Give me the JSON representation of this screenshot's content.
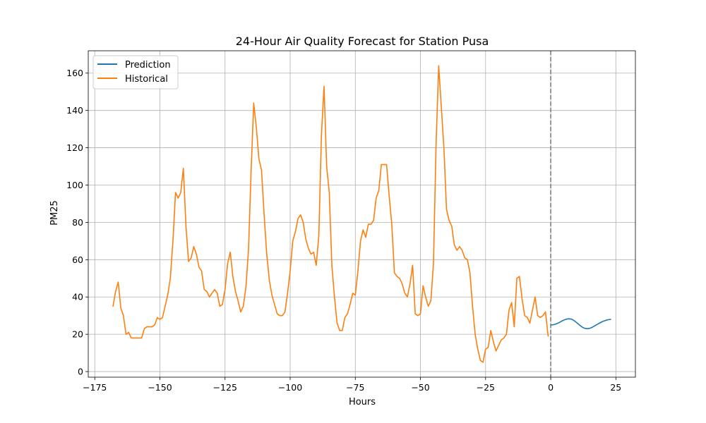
{
  "chart_data": {
    "type": "line",
    "title": "24-Hour Air Quality Forecast for Station Pusa",
    "xlabel": "Hours",
    "ylabel": "PM25",
    "xlim": [
      -177.5,
      32.5
    ],
    "ylim": [
      -3,
      172
    ],
    "x_ticks": [
      -175,
      -150,
      -125,
      -100,
      -75,
      -50,
      -25,
      0,
      25
    ],
    "y_ticks": [
      0,
      20,
      40,
      60,
      80,
      100,
      120,
      140,
      160
    ],
    "grid": true,
    "legend_position": "top-left",
    "vline": {
      "x": 0,
      "color": "#808080",
      "style": "dashed"
    },
    "series": [
      {
        "name": "Prediction",
        "color": "#1f77b4",
        "x": [
          0,
          1,
          2,
          3,
          4,
          5,
          6,
          7,
          8,
          9,
          10,
          11,
          12,
          13,
          14,
          15,
          16,
          17,
          18,
          19,
          20,
          21,
          22,
          23
        ],
        "y": [
          25,
          25.1,
          25.5,
          26.1,
          26.9,
          27.6,
          28.1,
          28.3,
          28.1,
          27.3,
          26.2,
          25,
          23.9,
          23.2,
          23,
          23.2,
          23.8,
          24.6,
          25.4,
          26.2,
          26.9,
          27.4,
          27.8,
          28
        ]
      },
      {
        "name": "Historical",
        "color": "#ff7f0e",
        "x": [
          -168,
          -167,
          -166,
          -165,
          -164,
          -163,
          -162,
          -161,
          -160,
          -159,
          -158,
          -157,
          -156,
          -155,
          -154,
          -153,
          -152,
          -151,
          -150,
          -149,
          -148,
          -147,
          -146,
          -145,
          -144,
          -143,
          -142,
          -141,
          -140,
          -139,
          -138,
          -137,
          -136,
          -135,
          -134,
          -133,
          -132,
          -131,
          -130,
          -129,
          -128,
          -127,
          -126,
          -125,
          -124,
          -123,
          -122,
          -121,
          -120,
          -119,
          -118,
          -117,
          -116,
          -115,
          -114,
          -113,
          -112,
          -111,
          -110,
          -109,
          -108,
          -107,
          -106,
          -105,
          -104,
          -103,
          -102,
          -101,
          -100,
          -99,
          -98,
          -97,
          -96,
          -95,
          -94,
          -93,
          -92,
          -91,
          -90,
          -89,
          -88,
          -87,
          -86,
          -85,
          -84,
          -83,
          -82,
          -81,
          -80,
          -79,
          -78,
          -77,
          -76,
          -75,
          -74,
          -73,
          -72,
          -71,
          -70,
          -69,
          -68,
          -67,
          -66,
          -65,
          -64,
          -63,
          -62,
          -61,
          -60,
          -59,
          -58,
          -57,
          -56,
          -55,
          -54,
          -53,
          -52,
          -51,
          -50,
          -49,
          -48,
          -47,
          -46,
          -45,
          -44,
          -43,
          -42,
          -41,
          -40,
          -39,
          -38,
          -37,
          -36,
          -35,
          -34,
          -33,
          -32,
          -31,
          -30,
          -29,
          -28,
          -27,
          -26,
          -25,
          -24,
          -23,
          -22,
          -21,
          -20,
          -19,
          -18,
          -17,
          -16,
          -15,
          -14,
          -13,
          -12,
          -11,
          -10,
          -9,
          -8,
          -7,
          -6,
          -5,
          -4,
          -3,
          -2,
          -1
        ],
        "y": [
          35,
          43,
          48,
          34,
          30,
          20,
          21,
          18,
          18,
          18,
          18,
          18,
          23,
          24,
          24,
          24,
          25,
          29,
          28,
          29,
          35,
          41,
          50,
          70,
          96,
          93,
          96,
          109,
          78,
          59,
          61,
          67,
          63,
          56,
          54,
          44,
          43,
          40,
          42,
          44,
          42,
          35,
          36,
          44,
          58,
          64,
          51,
          43,
          38,
          32,
          35,
          45,
          65,
          107,
          144,
          131,
          114,
          108,
          84,
          63,
          49,
          41,
          36,
          31,
          30,
          30,
          32,
          42,
          54,
          70,
          75,
          82,
          84,
          80,
          71,
          66,
          63,
          64,
          57,
          73,
          127,
          153,
          110,
          96,
          57,
          40,
          26,
          22,
          22,
          29,
          31,
          36,
          42,
          41,
          54,
          70,
          76,
          72,
          79,
          79,
          81,
          93,
          97,
          111,
          111,
          111,
          94,
          79,
          53,
          51,
          50,
          47,
          42,
          40,
          47,
          57,
          31,
          30,
          31,
          46,
          40,
          35,
          38,
          58,
          122,
          164,
          142,
          120,
          87,
          81,
          78,
          68,
          65,
          67,
          65,
          61,
          60,
          53,
          35,
          20,
          12,
          6,
          5,
          12,
          13,
          22,
          16,
          11,
          14,
          17,
          18,
          20,
          33,
          37,
          24,
          50,
          51,
          39,
          30,
          29,
          26,
          33,
          40,
          30,
          29,
          30,
          32,
          19
        ]
      }
    ]
  }
}
